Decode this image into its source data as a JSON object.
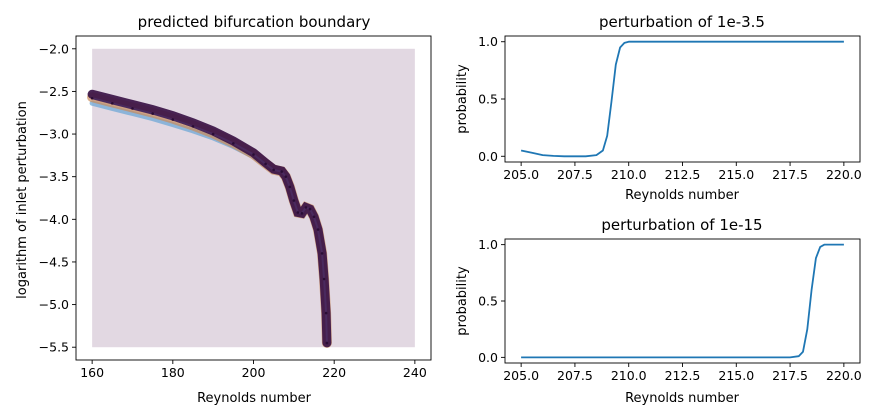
{
  "chart_data": [
    {
      "type": "scatter",
      "title": "predicted bifurcation boundary",
      "xlabel": "Reynolds number",
      "ylabel": "logarithm of inlet perturbation",
      "xlim": [
        156,
        244
      ],
      "ylim": [
        -5.65,
        -1.85
      ],
      "xticks": [
        160,
        180,
        200,
        220,
        240
      ],
      "yticks": [
        -2.0,
        -2.5,
        -3.0,
        -3.5,
        -4.0,
        -4.5,
        -5.0,
        -5.5
      ],
      "xtick_labels": [
        "160",
        "180",
        "200",
        "220",
        "240"
      ],
      "ytick_labels": [
        "−2.0",
        "−2.5",
        "−3.0",
        "−3.5",
        "−4.0",
        "−4.5",
        "−5.0",
        "−5.5"
      ],
      "background_region": {
        "x": [
          160,
          240
        ],
        "y": [
          -5.5,
          -2.0
        ],
        "color": "#e2d8e2"
      },
      "boundary": {
        "x": [
          160,
          165,
          170,
          175,
          180,
          185,
          190,
          195,
          200,
          203,
          205,
          207,
          208,
          209,
          210,
          211,
          212,
          213,
          214,
          215,
          216,
          217,
          217.5,
          218,
          218.2
        ],
        "y": [
          -2.58,
          -2.64,
          -2.7,
          -2.76,
          -2.83,
          -2.91,
          -3.0,
          -3.11,
          -3.24,
          -3.35,
          -3.42,
          -3.44,
          -3.5,
          -3.62,
          -3.78,
          -3.92,
          -3.93,
          -3.86,
          -3.88,
          -3.97,
          -4.12,
          -4.4,
          -4.7,
          -5.1,
          -5.45
        ]
      }
    },
    {
      "type": "line",
      "title": "perturbation of 1e-3.5",
      "xlabel": "Reynolds number",
      "ylabel": "probability",
      "xlim": [
        204.25,
        220.75
      ],
      "ylim": [
        -0.05,
        1.05
      ],
      "xticks": [
        205.0,
        207.5,
        210.0,
        212.5,
        215.0,
        217.5,
        220.0
      ],
      "yticks": [
        0.0,
        0.5,
        1.0
      ],
      "xtick_labels": [
        "205.0",
        "207.5",
        "210.0",
        "212.5",
        "215.0",
        "217.5",
        "220.0"
      ],
      "ytick_labels": [
        "0.0",
        "0.5",
        "1.0"
      ],
      "series": [
        {
          "name": "probability",
          "color": "#1f77b4",
          "x": [
            205.0,
            205.5,
            206.0,
            206.5,
            207.0,
            207.5,
            208.0,
            208.5,
            208.8,
            209.0,
            209.2,
            209.4,
            209.6,
            209.8,
            210.0,
            210.5,
            211.0,
            215.0,
            220.0
          ],
          "y": [
            0.05,
            0.03,
            0.01,
            0.003,
            0.0,
            0.0,
            0.0,
            0.01,
            0.05,
            0.18,
            0.48,
            0.8,
            0.95,
            0.99,
            1.0,
            1.0,
            1.0,
            1.0,
            1.0
          ]
        }
      ]
    },
    {
      "type": "line",
      "title": "perturbation of 1e-15",
      "xlabel": "Reynolds number",
      "ylabel": "probability",
      "xlim": [
        204.25,
        220.75
      ],
      "ylim": [
        -0.05,
        1.05
      ],
      "xticks": [
        205.0,
        207.5,
        210.0,
        212.5,
        215.0,
        217.5,
        220.0
      ],
      "yticks": [
        0.0,
        0.5,
        1.0
      ],
      "xtick_labels": [
        "205.0",
        "207.5",
        "210.0",
        "212.5",
        "215.0",
        "217.5",
        "220.0"
      ],
      "ytick_labels": [
        "0.0",
        "0.5",
        "1.0"
      ],
      "series": [
        {
          "name": "probability",
          "color": "#1f77b4",
          "x": [
            205.0,
            210.0,
            217.5,
            217.9,
            218.1,
            218.3,
            218.5,
            218.7,
            218.9,
            219.1,
            219.4,
            220.0
          ],
          "y": [
            0.0,
            0.0,
            0.0,
            0.01,
            0.05,
            0.25,
            0.6,
            0.88,
            0.98,
            1.0,
            1.0,
            1.0
          ]
        }
      ]
    }
  ]
}
